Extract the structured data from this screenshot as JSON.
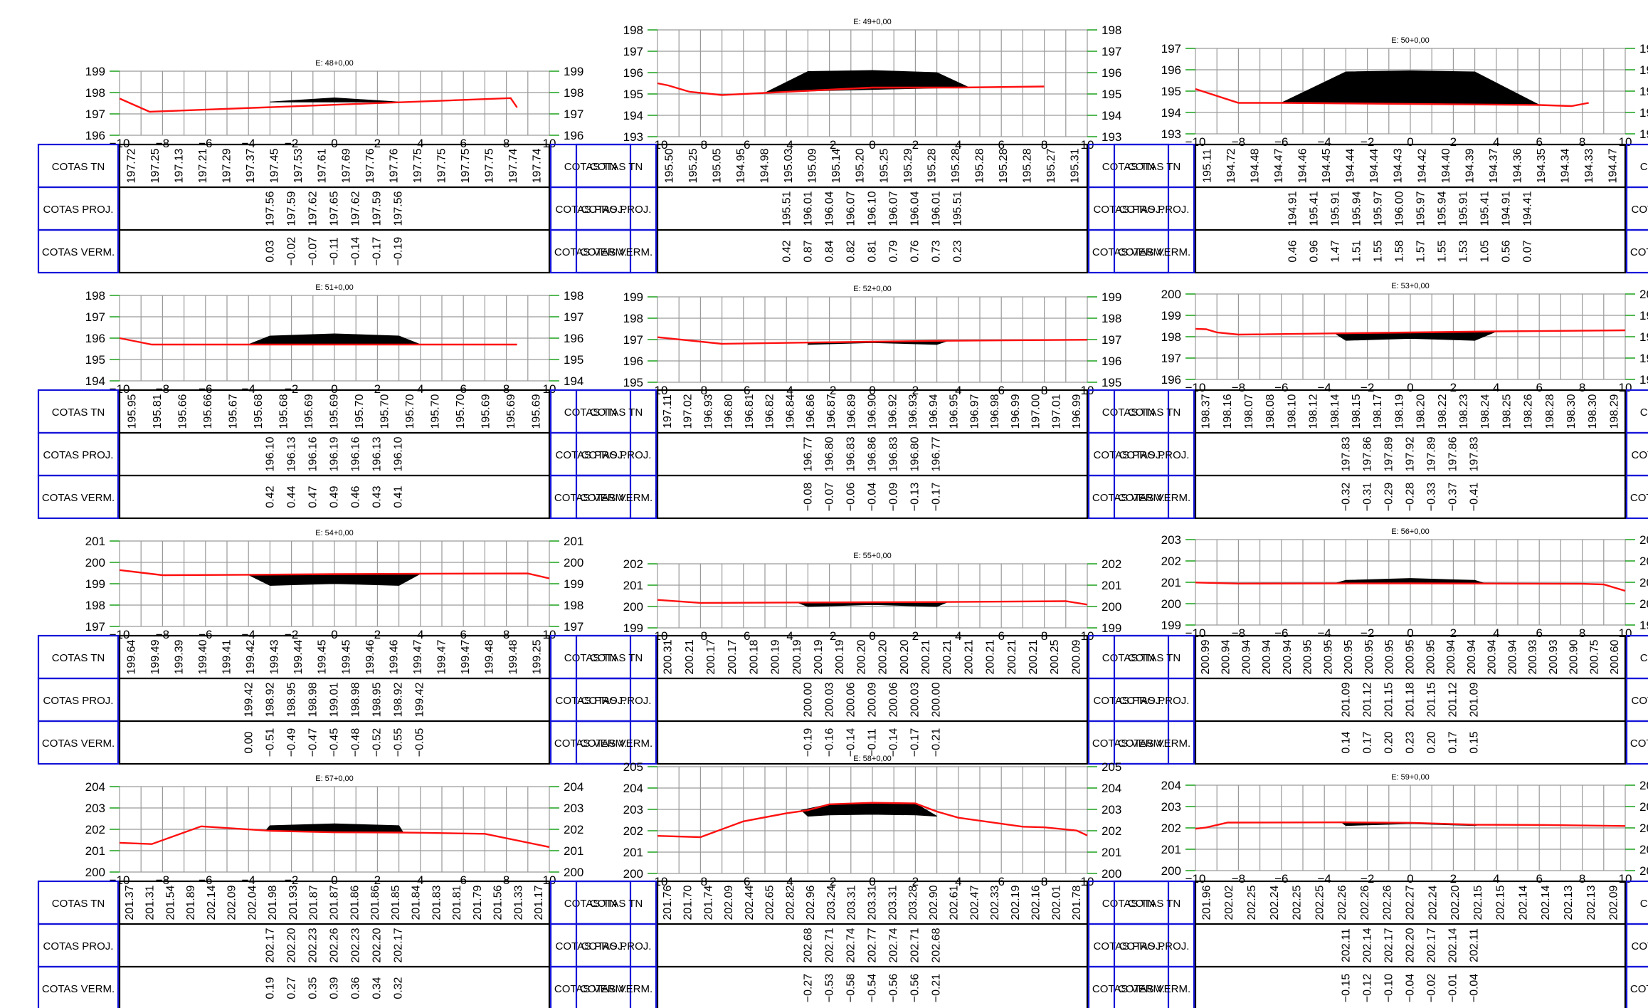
{
  "row_labels": [
    "COTAS TN",
    "COTAS PROJ.",
    "COTAS VERM."
  ],
  "x_ticks": [
    -10,
    -8,
    -6,
    -4,
    -2,
    0,
    2,
    4,
    6,
    8,
    10
  ],
  "colors": {
    "ground_line": "#ff1010",
    "section_fill": "#000000",
    "grid": "#9a9a9a",
    "label_box": "#1414d8",
    "tick": "#0a9a0a"
  },
  "chart_data": [
    {
      "type": "line",
      "title": "E: 48+0,00",
      "ylim": [
        196,
        199
      ],
      "terrain": [
        [
          -10,
          197.72
        ],
        [
          -8.6,
          197.1
        ],
        [
          8.2,
          197.74
        ],
        [
          8.5,
          197.3
        ]
      ],
      "section": [
        [
          -3,
          197.56
        ],
        [
          0,
          197.75
        ],
        [
          3,
          197.56
        ]
      ],
      "tn": [
        "197.72",
        "197.25",
        "197.13",
        "197.21",
        "197.29",
        "197.37",
        "197.45",
        "197.53",
        "197.61",
        "197.69",
        "197.76",
        "197.76",
        "197.75",
        "197.75",
        "197.75",
        "197.75",
        "197.74",
        "197.74"
      ],
      "proj": [
        "197.56",
        "197.59",
        "197.62",
        "197.65",
        "197.62",
        "197.59",
        "197.56"
      ],
      "verm": [
        "0.03",
        "-0.02",
        "-0.07",
        "-0.11",
        "-0.14",
        "-0.17",
        "-0.19"
      ]
    },
    {
      "type": "line",
      "title": "E: 49+0,00",
      "ylim": [
        193,
        198
      ],
      "terrain": [
        [
          -10,
          195.5
        ],
        [
          -9.5,
          195.4
        ],
        [
          -8.5,
          195.1
        ],
        [
          -7,
          194.95
        ],
        [
          -5,
          195.05
        ],
        [
          -3,
          195.15
        ],
        [
          0,
          195.3
        ],
        [
          4,
          195.3
        ],
        [
          8,
          195.35
        ]
      ],
      "section": [
        [
          -5,
          195.05
        ],
        [
          -3,
          196.05
        ],
        [
          0,
          196.1
        ],
        [
          3,
          196.0
        ],
        [
          4.5,
          195.3
        ],
        [
          3,
          195.28
        ],
        [
          -3,
          195.14
        ]
      ],
      "tn": [
        "195.50",
        "195.25",
        "195.05",
        "194.95",
        "194.98",
        "195.03",
        "195.09",
        "195.14",
        "195.20",
        "195.25",
        "195.29",
        "195.28",
        "195.28",
        "195.28",
        "195.28",
        "195.28",
        "195.27",
        "195.31"
      ],
      "proj": [
        "195.51",
        "196.01",
        "196.04",
        "196.07",
        "196.10",
        "196.07",
        "196.04",
        "196.01",
        "195.51"
      ],
      "verm": [
        "0.42",
        "0.87",
        "0.84",
        "0.82",
        "0.81",
        "0.79",
        "0.76",
        "0.73",
        "0.23"
      ]
    },
    {
      "type": "line",
      "title": "E: 50+0,00",
      "ylim": [
        193,
        197
      ],
      "terrain": [
        [
          -10,
          195.1
        ],
        [
          -8,
          194.45
        ],
        [
          -6,
          194.45
        ],
        [
          0,
          194.4
        ],
        [
          6,
          194.35
        ],
        [
          7.5,
          194.3
        ],
        [
          8.3,
          194.45
        ]
      ],
      "section": [
        [
          -6,
          194.45
        ],
        [
          -3,
          195.9
        ],
        [
          0,
          195.95
        ],
        [
          3,
          195.9
        ],
        [
          6,
          194.35
        ]
      ],
      "tn": [
        "195.11",
        "194.72",
        "194.48",
        "194.47",
        "194.46",
        "194.45",
        "194.44",
        "194.44",
        "194.43",
        "194.42",
        "194.40",
        "194.39",
        "194.37",
        "194.36",
        "194.35",
        "194.34",
        "194.33",
        "194.47"
      ],
      "proj": [
        "194.91",
        "195.41",
        "195.91",
        "195.94",
        "195.97",
        "196.00",
        "195.97",
        "195.94",
        "195.91",
        "195.41",
        "194.91",
        "194.41"
      ],
      "verm": [
        "0.46",
        "0.96",
        "1.47",
        "1.51",
        "1.55",
        "1.58",
        "1.57",
        "1.55",
        "1.53",
        "1.05",
        "0.56",
        "0.07"
      ]
    },
    {
      "type": "line",
      "title": "E: 51+0,00",
      "ylim": [
        194,
        198
      ],
      "terrain": [
        [
          -10,
          196.0
        ],
        [
          -9,
          195.8
        ],
        [
          -8.5,
          195.7
        ],
        [
          -4,
          195.7
        ],
        [
          8.5,
          195.7
        ]
      ],
      "section": [
        [
          -4,
          195.7
        ],
        [
          -3,
          196.1
        ],
        [
          0,
          196.2
        ],
        [
          3,
          196.1
        ],
        [
          4,
          195.7
        ]
      ],
      "tn": [
        "195.95",
        "195.81",
        "195.66",
        "195.66",
        "195.67",
        "195.68",
        "195.68",
        "195.69",
        "195.69",
        "195.70",
        "195.70",
        "195.70",
        "195.70",
        "195.70",
        "195.69",
        "195.69",
        "195.69"
      ],
      "proj": [
        "196.10",
        "196.13",
        "196.16",
        "196.19",
        "196.16",
        "196.13",
        "196.10"
      ],
      "verm": [
        "0.42",
        "0.44",
        "0.47",
        "0.49",
        "0.46",
        "0.43",
        "0.41"
      ]
    },
    {
      "type": "line",
      "title": "E: 52+0,00",
      "ylim": [
        195,
        199
      ],
      "terrain": [
        [
          -10,
          197.11
        ],
        [
          -7,
          196.8
        ],
        [
          -3,
          196.86
        ],
        [
          0,
          196.9
        ],
        [
          3,
          196.94
        ],
        [
          10,
          196.99
        ]
      ],
      "section": [
        [
          -3,
          196.77
        ],
        [
          0,
          196.86
        ],
        [
          3,
          196.77
        ],
        [
          3.5,
          196.94
        ],
        [
          0,
          196.9
        ],
        [
          -3,
          196.86
        ]
      ],
      "tn": [
        "197.11",
        "197.02",
        "196.93",
        "196.80",
        "196.81",
        "196.82",
        "196.84",
        "196.86",
        "196.87",
        "196.89",
        "196.90",
        "196.92",
        "196.93",
        "196.94",
        "196.95",
        "196.97",
        "196.98",
        "196.99",
        "197.00",
        "197.01",
        "196.99"
      ],
      "proj": [
        "196.77",
        "196.80",
        "196.83",
        "196.86",
        "196.83",
        "196.80",
        "196.77"
      ],
      "verm": [
        "-0.08",
        "-0.07",
        "-0.06",
        "-0.04",
        "-0.09",
        "-0.13",
        "-0.17"
      ]
    },
    {
      "type": "line",
      "title": "E: 53+0,00",
      "ylim": [
        196,
        200
      ],
      "terrain": [
        [
          -10,
          198.37
        ],
        [
          -9.5,
          198.35
        ],
        [
          -9,
          198.2
        ],
        [
          -8,
          198.1
        ],
        [
          0,
          198.2
        ],
        [
          4,
          198.25
        ],
        [
          10,
          198.3
        ]
      ],
      "section": [
        [
          -3.5,
          198.15
        ],
        [
          -3,
          197.83
        ],
        [
          0,
          197.92
        ],
        [
          3,
          197.83
        ],
        [
          4,
          198.25
        ]
      ],
      "tn": [
        "198.37",
        "198.16",
        "198.07",
        "198.08",
        "198.10",
        "198.12",
        "198.14",
        "198.15",
        "198.17",
        "198.19",
        "198.20",
        "198.22",
        "198.23",
        "198.24",
        "198.25",
        "198.26",
        "198.28",
        "198.30",
        "198.30",
        "198.29"
      ],
      "proj": [
        "197.83",
        "197.86",
        "197.89",
        "197.92",
        "197.89",
        "197.86",
        "197.83"
      ],
      "verm": [
        "-0.32",
        "-0.31",
        "-0.29",
        "-0.28",
        "-0.33",
        "-0.37",
        "-0.41"
      ]
    },
    {
      "type": "line",
      "title": "E: 54+0,00",
      "ylim": [
        197,
        201
      ],
      "terrain": [
        [
          -10,
          199.64
        ],
        [
          -8,
          199.4
        ],
        [
          -4,
          199.42
        ],
        [
          0,
          199.45
        ],
        [
          4,
          199.47
        ],
        [
          9,
          199.48
        ],
        [
          10,
          199.25
        ]
      ],
      "section": [
        [
          -4,
          199.42
        ],
        [
          -3,
          198.92
        ],
        [
          0,
          199.01
        ],
        [
          3,
          198.92
        ],
        [
          4,
          199.47
        ]
      ],
      "tn": [
        "199.64",
        "199.49",
        "199.39",
        "199.40",
        "199.41",
        "199.42",
        "199.43",
        "199.44",
        "199.45",
        "199.45",
        "199.46",
        "199.46",
        "199.47",
        "199.47",
        "199.47",
        "199.48",
        "199.48",
        "199.25"
      ],
      "proj": [
        "199.42",
        "198.92",
        "198.95",
        "198.98",
        "199.01",
        "198.98",
        "198.95",
        "198.92",
        "199.42"
      ],
      "verm": [
        "0.00",
        "-0.51",
        "-0.49",
        "-0.47",
        "-0.45",
        "-0.48",
        "-0.52",
        "-0.55",
        "-0.05"
      ]
    },
    {
      "type": "line",
      "title": "E: 55+0,00",
      "ylim": [
        199,
        202
      ],
      "terrain": [
        [
          -10,
          200.31
        ],
        [
          -8,
          200.17
        ],
        [
          -3,
          200.19
        ],
        [
          0,
          200.2
        ],
        [
          3,
          200.21
        ],
        [
          9,
          200.25
        ],
        [
          10,
          200.09
        ]
      ],
      "section": [
        [
          -3.5,
          200.19
        ],
        [
          -3,
          200.0
        ],
        [
          0,
          200.09
        ],
        [
          3,
          200.0
        ],
        [
          3.5,
          200.21
        ]
      ],
      "tn": [
        "200.31",
        "200.21",
        "200.17",
        "200.17",
        "200.18",
        "200.19",
        "200.19",
        "200.19",
        "200.19",
        "200.20",
        "200.20",
        "200.20",
        "200.21",
        "200.21",
        "200.21",
        "200.21",
        "200.21",
        "200.21",
        "200.25",
        "200.09"
      ],
      "proj": [
        "200.00",
        "200.03",
        "200.06",
        "200.09",
        "200.06",
        "200.03",
        "200.00"
      ],
      "verm": [
        "-0.19",
        "-0.16",
        "-0.14",
        "-0.11",
        "-0.14",
        "-0.17",
        "-0.21"
      ]
    },
    {
      "type": "line",
      "title": "E: 56+0,00",
      "ylim": [
        199,
        203
      ],
      "terrain": [
        [
          -10,
          200.99
        ],
        [
          -8,
          200.94
        ],
        [
          0,
          200.95
        ],
        [
          8,
          200.93
        ],
        [
          9,
          200.9
        ],
        [
          10,
          200.6
        ]
      ],
      "section": [
        [
          -3.5,
          200.95
        ],
        [
          -3,
          201.09
        ],
        [
          0,
          201.18
        ],
        [
          3,
          201.09
        ],
        [
          3.5,
          200.94
        ]
      ],
      "tn": [
        "200.99",
        "200.94",
        "200.94",
        "200.94",
        "200.94",
        "200.95",
        "200.95",
        "200.95",
        "200.95",
        "200.95",
        "200.95",
        "200.95",
        "200.94",
        "200.94",
        "200.94",
        "200.94",
        "200.93",
        "200.93",
        "200.90",
        "200.75",
        "200.60"
      ],
      "proj": [
        "201.09",
        "201.12",
        "201.15",
        "201.18",
        "201.15",
        "201.12",
        "201.09"
      ],
      "verm": [
        "0.14",
        "0.17",
        "0.20",
        "0.23",
        "0.20",
        "0.17",
        "0.15"
      ]
    },
    {
      "type": "line",
      "title": "E: 57+0,00",
      "ylim": [
        200,
        204
      ],
      "terrain": [
        [
          -10,
          201.37
        ],
        [
          -8.5,
          201.31
        ],
        [
          -6.2,
          202.14
        ],
        [
          -3,
          201.93
        ],
        [
          0,
          201.86
        ],
        [
          3,
          201.85
        ],
        [
          4,
          201.84
        ],
        [
          7,
          201.79
        ],
        [
          10,
          201.17
        ]
      ],
      "section": [
        [
          -3.2,
          201.93
        ],
        [
          -3,
          202.17
        ],
        [
          0,
          202.26
        ],
        [
          3,
          202.17
        ],
        [
          3.2,
          201.85
        ]
      ],
      "tn": [
        "201.37",
        "201.31",
        "201.54",
        "201.89",
        "202.14",
        "202.09",
        "202.04",
        "201.98",
        "201.93",
        "201.87",
        "201.87",
        "201.86",
        "201.86",
        "201.85",
        "201.84",
        "201.83",
        "201.81",
        "201.79",
        "201.56",
        "201.33",
        "201.17"
      ],
      "proj": [
        "202.17",
        "202.20",
        "202.23",
        "202.26",
        "202.23",
        "202.20",
        "202.17"
      ],
      "verm": [
        "0.19",
        "0.27",
        "0.35",
        "0.39",
        "0.36",
        "0.34",
        "0.32"
      ]
    },
    {
      "type": "line",
      "title": "E: 58+0,00",
      "ylim": [
        200,
        205
      ],
      "terrain": [
        [
          -10,
          201.76
        ],
        [
          -8,
          201.7
        ],
        [
          -6,
          202.44
        ],
        [
          -4,
          202.82
        ],
        [
          -3,
          202.96
        ],
        [
          -2,
          203.24
        ],
        [
          0,
          203.31
        ],
        [
          2,
          203.28
        ],
        [
          3,
          202.9
        ],
        [
          4,
          202.61
        ],
        [
          7,
          202.19
        ],
        [
          8,
          202.16
        ],
        [
          9.5,
          202.01
        ],
        [
          10,
          201.78
        ]
      ],
      "section": [
        [
          -3.3,
          202.96
        ],
        [
          -3,
          202.68
        ],
        [
          -2,
          202.74
        ],
        [
          0,
          202.77
        ],
        [
          2,
          202.74
        ],
        [
          3,
          202.68
        ],
        [
          2,
          203.28
        ],
        [
          0,
          203.31
        ],
        [
          -2,
          203.24
        ]
      ],
      "tn": [
        "201.76",
        "201.70",
        "201.74",
        "202.09",
        "202.44",
        "202.65",
        "202.82",
        "202.96",
        "203.24",
        "203.31",
        "203.31",
        "203.31",
        "203.28",
        "202.90",
        "202.61",
        "202.47",
        "202.33",
        "202.19",
        "202.16",
        "202.01",
        "201.78"
      ],
      "proj": [
        "202.68",
        "202.71",
        "202.74",
        "202.77",
        "202.74",
        "202.71",
        "202.68"
      ],
      "verm": [
        "-0.27",
        "-0.53",
        "-0.58",
        "-0.54",
        "-0.56",
        "-0.56",
        "-0.21"
      ]
    },
    {
      "type": "line",
      "title": "E: 59+0,00",
      "ylim": [
        200,
        204
      ],
      "terrain": [
        [
          -10,
          201.96
        ],
        [
          -9.5,
          202.02
        ],
        [
          -8.5,
          202.25
        ],
        [
          -3,
          202.26
        ],
        [
          0,
          202.24
        ],
        [
          3,
          202.15
        ],
        [
          6,
          202.14
        ],
        [
          10,
          202.09
        ]
      ],
      "section": [
        [
          -3.2,
          202.26
        ],
        [
          -3,
          202.11
        ],
        [
          0,
          202.2
        ],
        [
          3,
          202.11
        ],
        [
          3.2,
          202.15
        ]
      ],
      "tn": [
        "201.96",
        "202.02",
        "202.25",
        "202.24",
        "202.25",
        "202.25",
        "202.26",
        "202.26",
        "202.26",
        "202.27",
        "202.24",
        "202.20",
        "202.15",
        "202.15",
        "202.14",
        "202.14",
        "202.13",
        "202.13",
        "202.09"
      ],
      "proj": [
        "202.11",
        "202.14",
        "202.17",
        "202.20",
        "202.17",
        "202.14",
        "202.11"
      ],
      "verm": [
        "-0.15",
        "-0.12",
        "-0.10",
        "-0.04",
        "-0.02",
        "-0.01",
        "-0.04"
      ]
    }
  ]
}
